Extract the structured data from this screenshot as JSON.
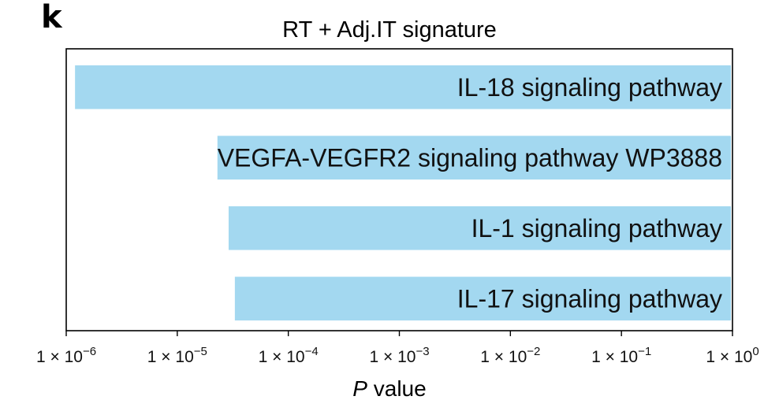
{
  "panel_label": "k",
  "chart_data": {
    "type": "bar",
    "orientation": "horizontal",
    "title": "RT + Adj.IT signature",
    "xlabel_italic": "P",
    "xlabel_rest": " value",
    "xscale": "log",
    "xlim": [
      1e-06,
      1
    ],
    "xticks": [
      {
        "base": "1 × 10",
        "exp": "−6",
        "value": 1e-06
      },
      {
        "base": "1 × 10",
        "exp": "−5",
        "value": 1e-05
      },
      {
        "base": "1 × 10",
        "exp": "−4",
        "value": 0.0001
      },
      {
        "base": "1 × 10",
        "exp": "−3",
        "value": 0.001
      },
      {
        "base": "1 × 10",
        "exp": "−2",
        "value": 0.01
      },
      {
        "base": "1 × 10",
        "exp": "−1",
        "value": 0.1
      },
      {
        "base": "1 × 10",
        "exp": "0",
        "value": 1
      }
    ],
    "categories": [
      "IL-18 signaling pathway",
      "VEGFA-VEGFR2 signaling pathway WP3888",
      "IL-1 signaling pathway",
      "IL-17 signaling pathway"
    ],
    "values": [
      1.2e-06,
      2.3e-05,
      2.9e-05,
      3.3e-05
    ],
    "bar_color": "#a3d8f0",
    "grid": false,
    "legend": "none"
  }
}
